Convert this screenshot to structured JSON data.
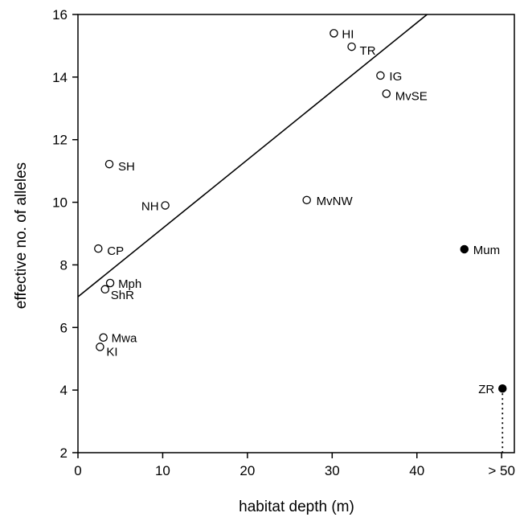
{
  "chart_data": {
    "type": "scatter",
    "title": "",
    "xlabel": "habitat depth (m)",
    "ylabel": "effective no. of alleles",
    "xlim": [
      0,
      51.5
    ],
    "ylim": [
      2,
      16
    ],
    "x_ticks": [
      0,
      10,
      20,
      30,
      40,
      50
    ],
    "x_tick_labels": [
      "0",
      "10",
      "20",
      "30",
      "40",
      "> 50"
    ],
    "y_ticks": [
      2,
      4,
      6,
      8,
      10,
      12,
      14,
      16
    ],
    "y_tick_labels": [
      "2",
      "4",
      "6",
      "8",
      "10",
      "12",
      "14",
      "16"
    ],
    "grid": false,
    "legend": "none",
    "points": [
      {
        "label": "HI",
        "x": 30.2,
        "y": 15.4,
        "filled": false
      },
      {
        "label": "TR",
        "x": 32.3,
        "y": 14.97,
        "filled": false
      },
      {
        "label": "IG",
        "x": 35.7,
        "y": 14.05,
        "filled": false
      },
      {
        "label": "MvSE",
        "x": 36.4,
        "y": 13.47,
        "filled": false
      },
      {
        "label": "SH",
        "x": 3.7,
        "y": 11.22,
        "filled": false
      },
      {
        "label": "NH",
        "x": 10.3,
        "y": 9.9,
        "filled": false
      },
      {
        "label": "MvNW",
        "x": 27.0,
        "y": 10.07,
        "filled": false
      },
      {
        "label": "CP",
        "x": 2.4,
        "y": 8.52,
        "filled": false
      },
      {
        "label": "Mph",
        "x": 3.8,
        "y": 7.42,
        "filled": false
      },
      {
        "label": "ShR",
        "x": 3.2,
        "y": 7.22,
        "filled": false
      },
      {
        "label": "Mwa",
        "x": 3.0,
        "y": 5.68,
        "filled": false
      },
      {
        "label": "KI",
        "x": 2.6,
        "y": 5.38,
        "filled": false
      },
      {
        "label": "Mum",
        "x": 45.6,
        "y": 8.5,
        "filled": true
      },
      {
        "label": "ZR",
        "x": 50.1,
        "y": 4.05,
        "filled": true
      }
    ],
    "regression_line": {
      "x": [
        0,
        41.2
      ],
      "y": [
        6.98,
        16
      ]
    },
    "dotted_drop": {
      "label": "ZR",
      "x": 50.1,
      "y_from": 4.05,
      "y_to": 2
    }
  }
}
